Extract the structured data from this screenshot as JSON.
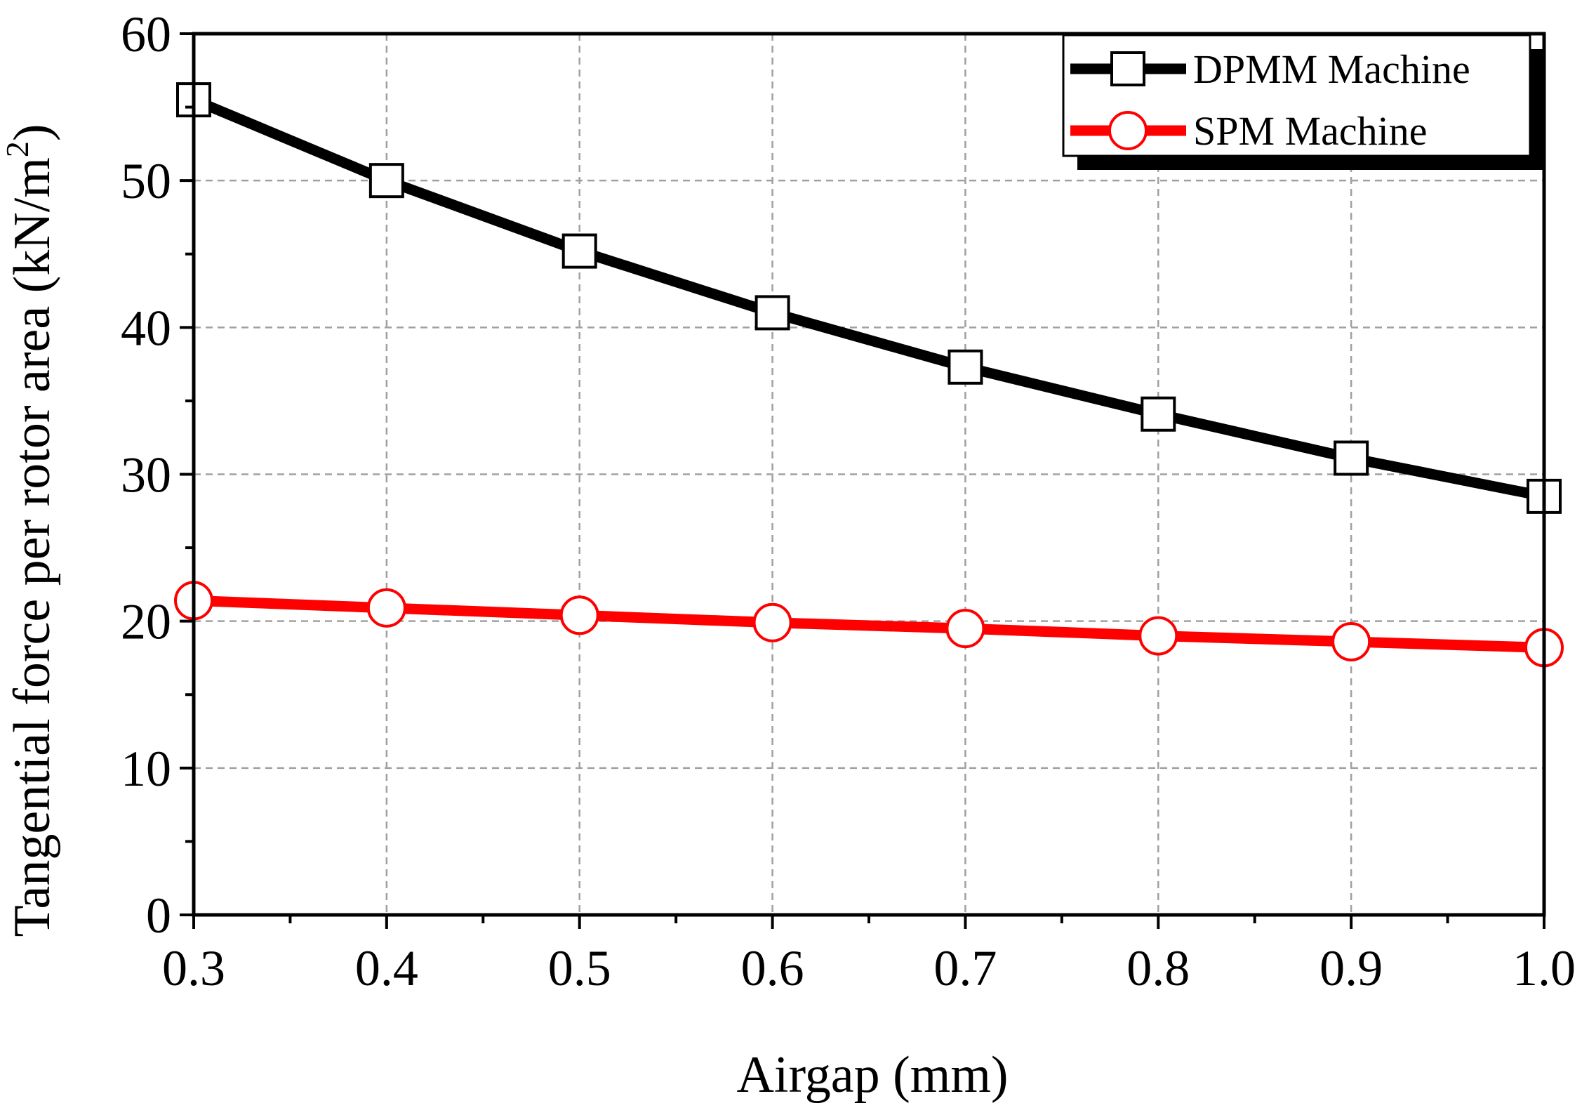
{
  "chart_data": {
    "type": "line",
    "title": "",
    "xlabel": "Airgap (mm)",
    "ylabel_main": "Tangential force per rotor area (kN/m",
    "ylabel_sup": "2",
    "ylabel_end": ")",
    "x": [
      0.3,
      0.4,
      0.5,
      0.6,
      0.7,
      0.8,
      0.9,
      1.0
    ],
    "xlim": [
      0.3,
      1.0
    ],
    "ylim": [
      0,
      60
    ],
    "xticks": [
      "0.3",
      "0.4",
      "0.5",
      "0.6",
      "0.7",
      "0.8",
      "0.9",
      "1.0"
    ],
    "yticks": [
      "0",
      "10",
      "20",
      "30",
      "40",
      "50",
      "60"
    ],
    "grid": true,
    "legend_position": "top-right",
    "series": [
      {
        "name": "DPMM Machine",
        "color": "#000000",
        "marker": "square",
        "values": [
          55.5,
          50.0,
          45.2,
          41.0,
          37.3,
          34.1,
          31.1,
          28.5
        ]
      },
      {
        "name": "SPM Machine",
        "color": "#ff0000",
        "marker": "circle",
        "values": [
          21.4,
          20.9,
          20.4,
          19.9,
          19.5,
          19.0,
          18.6,
          18.2
        ]
      }
    ]
  }
}
